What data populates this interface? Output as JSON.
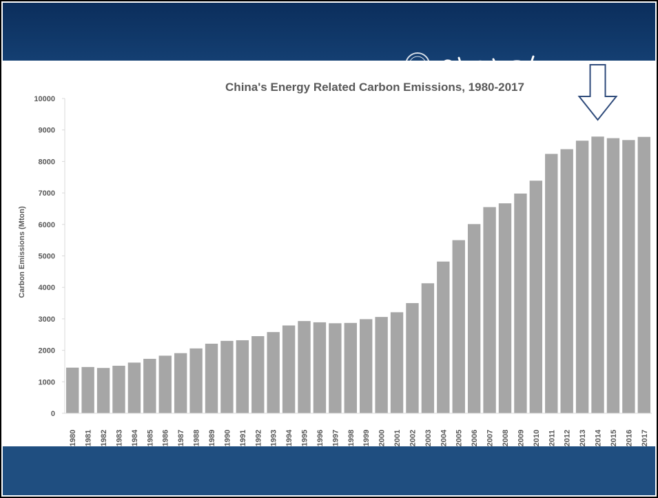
{
  "colors": {
    "header_band": "#0b2e5c",
    "footer_band": "#1f4e80",
    "bar": "#a6a6a6",
    "text": "#595959",
    "arrow": "#2e4a7a"
  },
  "icons": [
    "university-seal-icon",
    "calligraphy-logo-icon",
    "down-arrow-icon"
  ],
  "chart_data": {
    "type": "bar",
    "title": "China's Energy Related Carbon Emissions, 1980-2017",
    "xlabel": "",
    "ylabel": "Carbon Emissions (Mton)",
    "ylim": [
      0,
      10000
    ],
    "yticks": [
      0,
      1000,
      2000,
      3000,
      4000,
      5000,
      6000,
      7000,
      8000,
      9000,
      10000
    ],
    "grid": false,
    "legend": "none",
    "categories": [
      "1980",
      "1981",
      "1982",
      "1983",
      "1984",
      "1985",
      "1986",
      "1987",
      "1988",
      "1989",
      "1990",
      "1991",
      "1992",
      "1993",
      "1994",
      "1995",
      "1996",
      "1997",
      "1998",
      "1999",
      "2000",
      "2001",
      "2002",
      "2003",
      "2004",
      "2005",
      "2006",
      "2007",
      "2008",
      "2009",
      "2010",
      "2011",
      "2012",
      "2013",
      "2014",
      "2015",
      "2016",
      "2017"
    ],
    "values": [
      1450,
      1470,
      1440,
      1510,
      1610,
      1730,
      1830,
      1910,
      2060,
      2210,
      2300,
      2320,
      2450,
      2580,
      2790,
      2930,
      2890,
      2860,
      2870,
      2990,
      3060,
      3210,
      3500,
      4130,
      4820,
      5500,
      6010,
      6550,
      6670,
      6980,
      7390,
      8240,
      8390,
      8660,
      8790,
      8740,
      8680,
      8780
    ],
    "annotation": {
      "type": "down-arrow",
      "category": "2014"
    }
  }
}
